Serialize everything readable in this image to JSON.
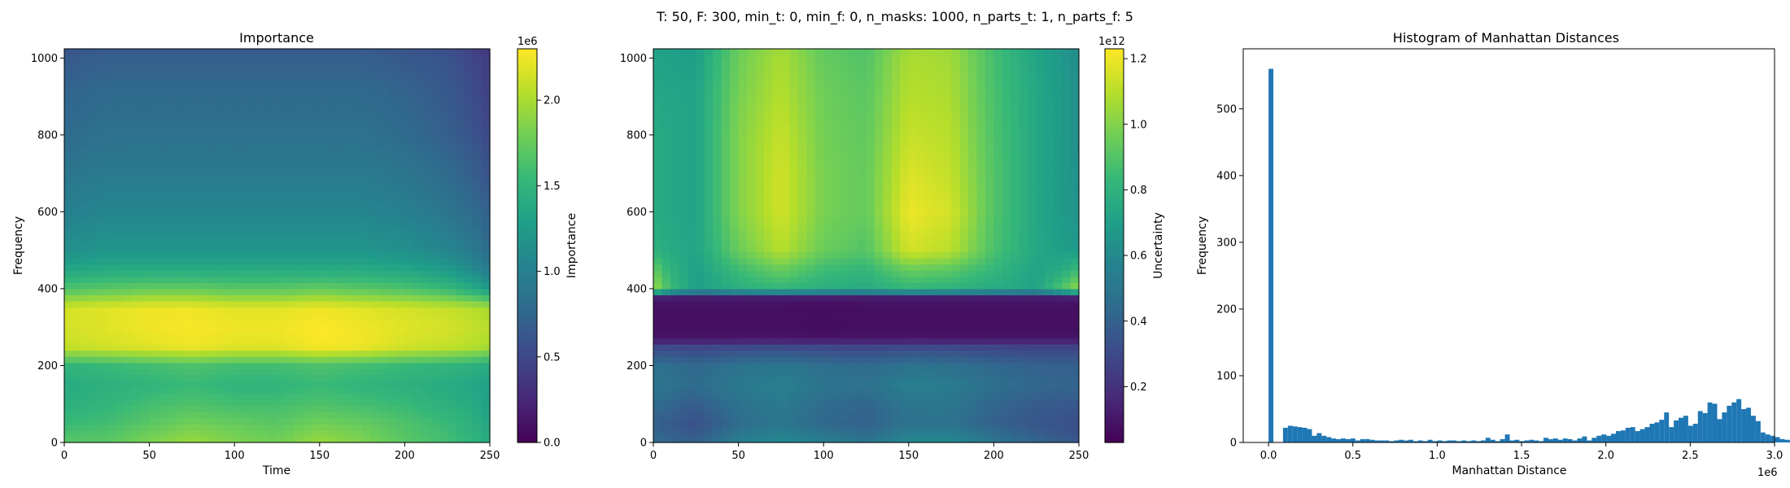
{
  "suptitle": "T: 50, F: 300, min_t: 0, min_f: 0, n_masks: 1000, n_parts_t: 1, n_parts_f: 5",
  "chart_data": [
    {
      "type": "heatmap",
      "title": "Importance",
      "xlabel": "Time",
      "ylabel": "Frequency",
      "colorbar_label": "Importance",
      "colormap": "viridis",
      "xlim": [
        0,
        250
      ],
      "ylim": [
        0,
        1024
      ],
      "xticks": [
        0,
        50,
        100,
        150,
        200,
        250
      ],
      "yticks": [
        0,
        200,
        400,
        600,
        800,
        1000
      ],
      "clim": [
        0,
        2300000
      ],
      "colorbar_ticks": [
        0,
        500000,
        1000000,
        1500000,
        2000000
      ],
      "colorbar_tick_labels": [
        "0.0",
        "0.5",
        "1.0",
        "1.5",
        "2.0"
      ],
      "colorbar_exponent": "1e6",
      "time_points": [
        0,
        25,
        50,
        75,
        100,
        125,
        150,
        175,
        200,
        225,
        240,
        250
      ],
      "freq_points": [
        0,
        50,
        100,
        150,
        200,
        250,
        300,
        350,
        400,
        450,
        500,
        600,
        700,
        800,
        900,
        1000,
        1024
      ],
      "values": [
        [
          1700000,
          1700000,
          1850000,
          1950000,
          1850000,
          1800000,
          1950000,
          1850000,
          1700000,
          1600000,
          1500000,
          1400000
        ],
        [
          1550000,
          1600000,
          1700000,
          1800000,
          1750000,
          1700000,
          1800000,
          1750000,
          1650000,
          1550000,
          1450000,
          1350000
        ],
        [
          1450000,
          1500000,
          1600000,
          1650000,
          1600000,
          1600000,
          1650000,
          1600000,
          1550000,
          1450000,
          1400000,
          1300000
        ],
        [
          1400000,
          1450000,
          1500000,
          1550000,
          1500000,
          1500000,
          1550000,
          1500000,
          1450000,
          1400000,
          1350000,
          1300000
        ],
        [
          1500000,
          1550000,
          1600000,
          1650000,
          1600000,
          1600000,
          1650000,
          1600000,
          1550000,
          1500000,
          1450000,
          1400000
        ],
        [
          2100000,
          2150000,
          2200000,
          2250000,
          2200000,
          2200000,
          2280000,
          2250000,
          2150000,
          2100000,
          2050000,
          2000000
        ],
        [
          2150000,
          2200000,
          2250000,
          2280000,
          2250000,
          2250000,
          2300000,
          2250000,
          2200000,
          2150000,
          2100000,
          2050000
        ],
        [
          2150000,
          2200000,
          2250000,
          2250000,
          2200000,
          2200000,
          2250000,
          2200000,
          2150000,
          2100000,
          2050000,
          2000000
        ],
        [
          1650000,
          1700000,
          1750000,
          1750000,
          1700000,
          1700000,
          1750000,
          1700000,
          1650000,
          1550000,
          1400000,
          1250000
        ],
        [
          1350000,
          1400000,
          1400000,
          1400000,
          1400000,
          1400000,
          1400000,
          1400000,
          1350000,
          1250000,
          1100000,
          950000
        ],
        [
          1150000,
          1200000,
          1200000,
          1200000,
          1200000,
          1200000,
          1200000,
          1200000,
          1150000,
          1050000,
          950000,
          800000
        ],
        [
          1000000,
          1050000,
          1050000,
          1050000,
          1050000,
          1050000,
          1050000,
          1050000,
          1000000,
          900000,
          800000,
          700000
        ],
        [
          900000,
          950000,
          950000,
          950000,
          950000,
          950000,
          950000,
          950000,
          900000,
          800000,
          700000,
          600000
        ],
        [
          800000,
          850000,
          850000,
          850000,
          850000,
          850000,
          850000,
          850000,
          800000,
          700000,
          600000,
          500000
        ],
        [
          750000,
          800000,
          800000,
          800000,
          800000,
          800000,
          800000,
          800000,
          750000,
          650000,
          550000,
          450000
        ],
        [
          650000,
          700000,
          700000,
          700000,
          700000,
          700000,
          700000,
          700000,
          650000,
          600000,
          500000,
          400000
        ],
        [
          600000,
          650000,
          650000,
          650000,
          650000,
          650000,
          650000,
          650000,
          600000,
          550000,
          450000,
          350000
        ]
      ]
    },
    {
      "type": "heatmap",
      "title": "",
      "xlabel": "",
      "ylabel": "",
      "colorbar_label": "Uncertainty",
      "colormap": "viridis",
      "xlim": [
        0,
        250
      ],
      "ylim": [
        0,
        1024
      ],
      "xticks": [
        0,
        50,
        100,
        150,
        200,
        250
      ],
      "yticks": [
        0,
        200,
        400,
        600,
        800,
        1000
      ],
      "clim": [
        30000000000,
        1230000000000
      ],
      "colorbar_ticks": [
        200000000000,
        400000000000,
        600000000000,
        800000000000,
        1000000000000,
        1200000000000
      ],
      "colorbar_tick_labels": [
        "0.2",
        "0.4",
        "0.6",
        "0.8",
        "1.0",
        "1.2"
      ],
      "colorbar_exponent": "1e12",
      "time_points": [
        0,
        10,
        25,
        50,
        75,
        100,
        125,
        150,
        175,
        200,
        225,
        240,
        250
      ],
      "freq_points": [
        0,
        50,
        100,
        150,
        200,
        250,
        270,
        300,
        350,
        375,
        400,
        450,
        500,
        600,
        700,
        800,
        900,
        1000,
        1024
      ],
      "values": [
        [
          450000000000,
          420000000000,
          400000000000,
          550000000000,
          600000000000,
          550000000000,
          500000000000,
          600000000000,
          600000000000,
          500000000000,
          420000000000,
          380000000000,
          360000000000
        ],
        [
          400000000000,
          370000000000,
          330000000000,
          450000000000,
          500000000000,
          430000000000,
          400000000000,
          480000000000,
          480000000000,
          400000000000,
          350000000000,
          330000000000,
          320000000000
        ],
        [
          450000000000,
          420000000000,
          380000000000,
          480000000000,
          520000000000,
          450000000000,
          420000000000,
          500000000000,
          500000000000,
          420000000000,
          380000000000,
          370000000000,
          360000000000
        ],
        [
          500000000000,
          480000000000,
          450000000000,
          520000000000,
          550000000000,
          500000000000,
          480000000000,
          550000000000,
          530000000000,
          470000000000,
          430000000000,
          420000000000,
          420000000000
        ],
        [
          480000000000,
          460000000000,
          430000000000,
          480000000000,
          500000000000,
          460000000000,
          440000000000,
          480000000000,
          470000000000,
          430000000000,
          400000000000,
          400000000000,
          400000000000
        ],
        [
          300000000000,
          290000000000,
          280000000000,
          300000000000,
          300000000000,
          290000000000,
          280000000000,
          300000000000,
          290000000000,
          280000000000,
          270000000000,
          270000000000,
          270000000000
        ],
        [
          100000000000,
          100000000000,
          100000000000,
          100000000000,
          100000000000,
          100000000000,
          100000000000,
          100000000000,
          100000000000,
          100000000000,
          100000000000,
          100000000000,
          100000000000
        ],
        [
          80000000000,
          80000000000,
          80000000000,
          80000000000,
          80000000000,
          70000000000,
          80000000000,
          80000000000,
          80000000000,
          80000000000,
          80000000000,
          80000000000,
          80000000000
        ],
        [
          80000000000,
          80000000000,
          80000000000,
          80000000000,
          80000000000,
          70000000000,
          80000000000,
          80000000000,
          80000000000,
          80000000000,
          80000000000,
          80000000000,
          80000000000
        ],
        [
          100000000000,
          100000000000,
          100000000000,
          100000000000,
          100000000000,
          100000000000,
          100000000000,
          100000000000,
          100000000000,
          100000000000,
          100000000000,
          100000000000,
          100000000000
        ],
        [
          1050000000000,
          850000000000,
          700000000000,
          780000000000,
          820000000000,
          780000000000,
          760000000000,
          820000000000,
          800000000000,
          760000000000,
          720000000000,
          900000000000,
          1050000000000
        ],
        [
          950000000000,
          800000000000,
          700000000000,
          850000000000,
          950000000000,
          850000000000,
          820000000000,
          950000000000,
          920000000000,
          820000000000,
          720000000000,
          760000000000,
          850000000000
        ],
        [
          800000000000,
          760000000000,
          720000000000,
          950000000000,
          1100000000000,
          950000000000,
          900000000000,
          1150000000000,
          1100000000000,
          880000000000,
          740000000000,
          700000000000,
          680000000000
        ],
        [
          760000000000,
          740000000000,
          720000000000,
          1000000000000,
          1150000000000,
          980000000000,
          940000000000,
          1200000000000,
          1150000000000,
          900000000000,
          740000000000,
          680000000000,
          650000000000
        ],
        [
          760000000000,
          740000000000,
          720000000000,
          1000000000000,
          1150000000000,
          980000000000,
          940000000000,
          1170000000000,
          1120000000000,
          900000000000,
          740000000000,
          680000000000,
          640000000000
        ],
        [
          760000000000,
          740000000000,
          720000000000,
          1000000000000,
          1130000000000,
          970000000000,
          930000000000,
          1130000000000,
          1100000000000,
          890000000000,
          740000000000,
          680000000000,
          620000000000
        ],
        [
          740000000000,
          730000000000,
          720000000000,
          980000000000,
          1100000000000,
          960000000000,
          920000000000,
          1100000000000,
          1080000000000,
          880000000000,
          740000000000,
          680000000000,
          620000000000
        ],
        [
          720000000000,
          710000000000,
          700000000000,
          960000000000,
          1080000000000,
          940000000000,
          900000000000,
          1080000000000,
          1060000000000,
          870000000000,
          730000000000,
          670000000000,
          610000000000
        ],
        [
          710000000000,
          700000000000,
          690000000000,
          950000000000,
          1060000000000,
          930000000000,
          890000000000,
          1060000000000,
          1050000000000,
          860000000000,
          720000000000,
          660000000000,
          600000000000
        ]
      ]
    },
    {
      "type": "bar",
      "subtype": "histogram",
      "title": "Histogram of Manhattan Distances",
      "xlabel": "Manhattan Distance",
      "ylabel": "Frequency",
      "color": "#1f77b4",
      "xlim": [
        -150000,
        3000000
      ],
      "ylim": [
        0,
        590
      ],
      "xticks": [
        0,
        500000,
        1000000,
        1500000,
        2000000,
        2500000,
        3000000
      ],
      "xtick_labels": [
        "0.0",
        "0.5",
        "1.0",
        "1.5",
        "2.0",
        "2.5",
        "3.0"
      ],
      "x_exponent": "1e6",
      "yticks": [
        0,
        100,
        200,
        300,
        400,
        500
      ],
      "bin_start": 0,
      "bin_width": 28600,
      "values": [
        560,
        0,
        0,
        22,
        25,
        24,
        23,
        22,
        20,
        10,
        14,
        10,
        8,
        6,
        5,
        6,
        5,
        6,
        3,
        5,
        5,
        4,
        3,
        3,
        3,
        2,
        3,
        4,
        3,
        4,
        2,
        3,
        2,
        4,
        2,
        3,
        2,
        3,
        3,
        2,
        3,
        2,
        3,
        2,
        3,
        7,
        4,
        2,
        5,
        12,
        3,
        4,
        2,
        3,
        4,
        3,
        2,
        7,
        5,
        6,
        4,
        6,
        5,
        3,
        6,
        9,
        3,
        7,
        10,
        12,
        10,
        13,
        17,
        18,
        22,
        23,
        17,
        20,
        23,
        28,
        30,
        34,
        45,
        23,
        33,
        37,
        40,
        25,
        28,
        47,
        44,
        60,
        58,
        35,
        45,
        55,
        60,
        65,
        50,
        52,
        40,
        32,
        15,
        12,
        10,
        8,
        5,
        4,
        3,
        2,
        2,
        4,
        3,
        2,
        1,
        1,
        0,
        0,
        2,
        1,
        0,
        1,
        0,
        0,
        0,
        0,
        0,
        0,
        0,
        0
      ]
    }
  ]
}
